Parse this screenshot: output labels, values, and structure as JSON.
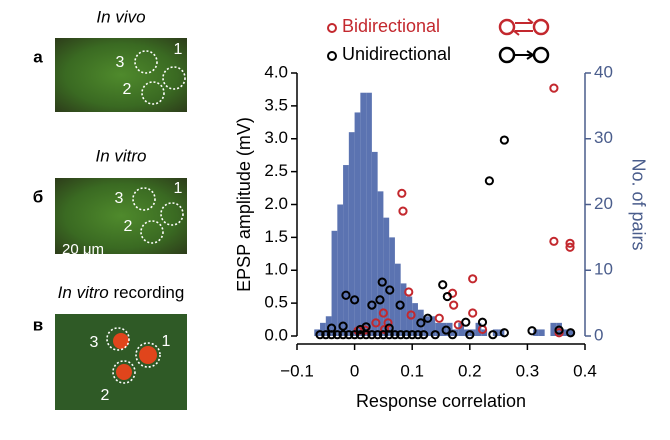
{
  "panels": [
    {
      "letter": "а",
      "title": "In vivo",
      "cells": [
        "1",
        "2",
        "3"
      ]
    },
    {
      "letter": "б",
      "title": "In vitro",
      "cells": [
        "1",
        "2",
        "3"
      ],
      "scale_bar": "20 μm"
    },
    {
      "letter": "в",
      "title": "In vitro",
      "title_rest": "recording",
      "cells": [
        "1",
        "2",
        "3"
      ]
    }
  ],
  "chart_data": {
    "type": "scatter",
    "xlabel": "Response correlation",
    "ylabel": "EPSP amplitude (mV)",
    "y2label": "No. of pairs",
    "xlim": [
      -0.1,
      0.4
    ],
    "xticks": [
      {
        "value": -0.1,
        "label": "−0.1"
      },
      0,
      0.1,
      0.2,
      0.3,
      0.4
    ],
    "ylim": [
      0,
      4
    ],
    "yticks": [
      {
        "value": 0,
        "label": "0.0"
      },
      0.5,
      {
        "value": 1,
        "label": "1.0"
      },
      1.5,
      {
        "value": 2,
        "label": "2.0"
      },
      2.5,
      {
        "value": 3,
        "label": "3.0"
      },
      3.5,
      {
        "value": 4,
        "label": "4.0"
      }
    ],
    "y2lim": [
      0,
      40
    ],
    "y2ticks": [
      0,
      10,
      20,
      30,
      40
    ],
    "legend": "top",
    "histogram": {
      "axis": "y2",
      "color": "#5b73b1",
      "bins": [
        -0.07,
        -0.06,
        -0.05,
        -0.04,
        -0.03,
        -0.02,
        -0.01,
        0,
        0.01,
        0.02,
        0.03,
        0.04,
        0.05,
        0.06,
        0.07,
        0.08,
        0.09,
        0.1,
        0.11,
        0.12,
        0.13,
        0.14,
        0.15,
        0.16,
        0.17,
        0.18,
        0.19,
        0.2,
        0.21,
        0.22,
        0.23,
        0.24,
        0.25,
        0.26,
        0.27,
        0.28,
        0.29,
        0.3,
        0.31,
        0.32,
        0.33,
        0.34,
        0.35,
        0.36,
        0.37,
        0.38
      ],
      "values": [
        1,
        2,
        3,
        16,
        20,
        26,
        31,
        34,
        37,
        37,
        28,
        22,
        18,
        15,
        11,
        8,
        6,
        5,
        4,
        3,
        3,
        2,
        2,
        2,
        1,
        2,
        1,
        1,
        2,
        1,
        0,
        1,
        1,
        0,
        0,
        0,
        0,
        0,
        1,
        1,
        0,
        2,
        2,
        1,
        1
      ]
    },
    "series": [
      {
        "name": "Bidirectional",
        "color": "#c3282e",
        "x": [
          0.006,
          0.018,
          0.037,
          0.05,
          0.052,
          0.058,
          0.082,
          0.084,
          0.094,
          0.098,
          0.147,
          0.17,
          0.172,
          0.18,
          0.205,
          0.205,
          0.222,
          0.346,
          0.346,
          0.355,
          0.374,
          0.374
        ],
        "values": [
          0.08,
          0.09,
          0.2,
          0.35,
          0.1,
          0.2,
          2.17,
          1.9,
          0.67,
          0.32,
          0.27,
          0.65,
          0.47,
          0.17,
          0.87,
          0.35,
          0.1,
          3.77,
          1.44,
          0.05,
          1.41,
          1.35
        ]
      },
      {
        "name": "Unidirectional",
        "color": "#000000",
        "x": [
          0.26,
          0.234,
          0.048,
          -0.015,
          0,
          0.03,
          0.044,
          0.061,
          0.079,
          0.153,
          0.161,
          0.127,
          0.115,
          0.159,
          0.193,
          0.222,
          0.26,
          0.308,
          0.355,
          0.375,
          -0.06,
          -0.05,
          -0.04,
          -0.03,
          -0.02,
          -0.01,
          0,
          0.01,
          0.02,
          0.03,
          0.04,
          0.05,
          0.06,
          0.07,
          0.08,
          0.09,
          0.1,
          0.11,
          0.12,
          0.14,
          0.17,
          0.2,
          0.24,
          -0.04,
          -0.02,
          0.01,
          0.02,
          0.06
        ],
        "values": [
          2.98,
          2.36,
          0.82,
          0.62,
          0.55,
          0.47,
          0.55,
          0.7,
          0.47,
          0.78,
          0.6,
          0.27,
          0.2,
          0.09,
          0.21,
          0.21,
          0.05,
          0.08,
          0.09,
          0.05,
          0.02,
          0.02,
          0.02,
          0.02,
          0.02,
          0.02,
          0.02,
          0.02,
          0.02,
          0.02,
          0.02,
          0.02,
          0.02,
          0.02,
          0.02,
          0.02,
          0.02,
          0.02,
          0.02,
          0.02,
          0.02,
          0.02,
          0.02,
          0.12,
          0.15,
          0.1,
          0.14,
          0.12
        ]
      }
    ]
  }
}
